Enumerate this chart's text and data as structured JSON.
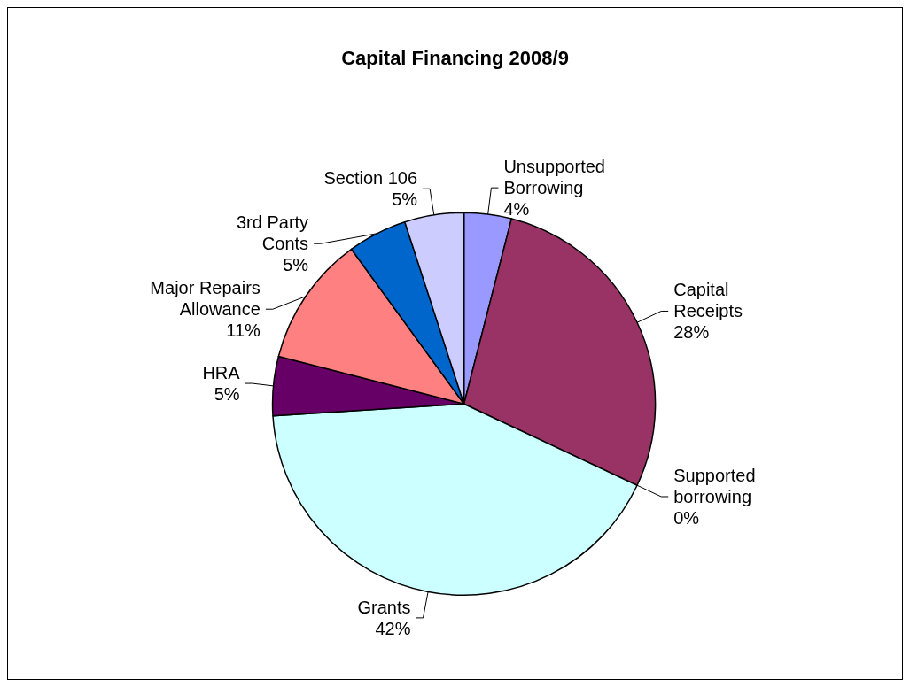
{
  "chart_data": {
    "type": "pie",
    "title": "Capital Financing 2008/9",
    "categories": [
      "Unsupported\nBorrowing",
      "Capital\nReceipts",
      "Supported\nborrowing",
      "Grants",
      "HRA",
      "Major Repairs\nAllowance",
      "3rd Party\nConts",
      "Section 106"
    ],
    "values": [
      4,
      28,
      0,
      42,
      5,
      11,
      5,
      5
    ],
    "value_labels": [
      "4%",
      "28%",
      "0%",
      "42%",
      "5%",
      "11%",
      "5%",
      "5%"
    ],
    "colors": [
      "#9999ff",
      "#993366",
      "#ffffcc",
      "#ccffff",
      "#660066",
      "#ff8080",
      "#0066cc",
      "#ccccff"
    ]
  }
}
